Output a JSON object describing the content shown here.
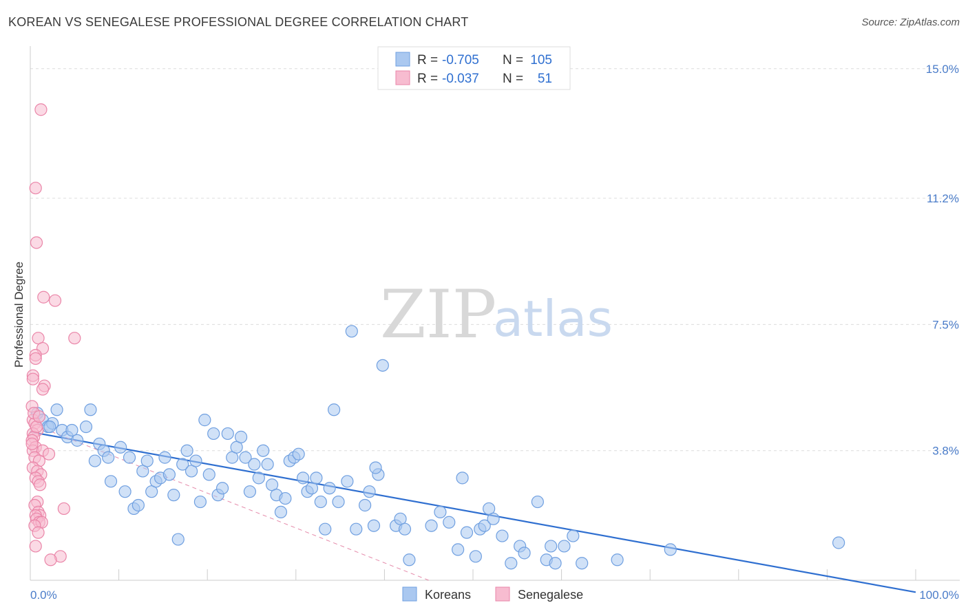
{
  "header": {
    "title": "KOREAN VS SENEGALESE PROFESSIONAL DEGREE CORRELATION CHART",
    "source": "Source: ZipAtlas.com"
  },
  "legend": {
    "rows": [
      {
        "r_label": "R =",
        "r_value": "-0.705",
        "n_label": "N =",
        "n_value": "105",
        "color": "#aac8f0",
        "stroke": "#6f9fe0"
      },
      {
        "r_label": "R =",
        "r_value": "-0.037",
        "n_label": "N =",
        "n_value": "51",
        "color": "#f7bcd0",
        "stroke": "#ea85a8"
      }
    ]
  },
  "bottom_legend": [
    {
      "label": "Koreans",
      "color": "#aac8f0",
      "stroke": "#6f9fe0"
    },
    {
      "label": "Senegalese",
      "color": "#f7bcd0",
      "stroke": "#ea85a8"
    }
  ],
  "watermark": {
    "zip": "ZIP",
    "atlas": "atlas"
  },
  "chart_data": {
    "type": "scatter",
    "title": "KOREAN VS SENEGALESE PROFESSIONAL DEGREE CORRELATION CHART",
    "xlabel": "",
    "ylabel": "Professional Degree",
    "xlim": [
      0,
      100
    ],
    "ylim": [
      0,
      15.5
    ],
    "x_tick_labels": [
      "0.0%",
      "100.0%"
    ],
    "y_ticks": [
      3.8,
      7.5,
      11.2,
      15.0
    ],
    "y_tick_labels": [
      "3.8%",
      "7.5%",
      "11.2%",
      "15.0%"
    ],
    "grid": true,
    "legend_position": "top-center",
    "series": [
      {
        "name": "Koreans",
        "color": "#aac8f0",
        "stroke": "#6f9fe0",
        "trend": {
          "x0": 0,
          "y0": 4.35,
          "x1": 100,
          "y1": -0.35,
          "color": "#2f6fd0",
          "style": "solid"
        },
        "points": [
          [
            0.8,
            4.9
          ],
          [
            1.4,
            4.7
          ],
          [
            2.0,
            4.5
          ],
          [
            2.5,
            4.6
          ],
          [
            3.0,
            5.0
          ],
          [
            2.2,
            4.5
          ],
          [
            3.6,
            4.4
          ],
          [
            4.2,
            4.2
          ],
          [
            4.7,
            4.4
          ],
          [
            5.3,
            4.1
          ],
          [
            6.3,
            4.5
          ],
          [
            6.8,
            5.0
          ],
          [
            7.3,
            3.5
          ],
          [
            7.8,
            4.0
          ],
          [
            8.3,
            3.8
          ],
          [
            8.8,
            3.6
          ],
          [
            9.1,
            2.9
          ],
          [
            10.2,
            3.9
          ],
          [
            10.7,
            2.6
          ],
          [
            11.2,
            3.6
          ],
          [
            11.7,
            2.1
          ],
          [
            12.2,
            2.2
          ],
          [
            12.7,
            3.2
          ],
          [
            13.2,
            3.5
          ],
          [
            13.7,
            2.6
          ],
          [
            14.2,
            2.9
          ],
          [
            14.7,
            3.0
          ],
          [
            15.2,
            3.6
          ],
          [
            15.7,
            3.1
          ],
          [
            16.2,
            2.5
          ],
          [
            16.7,
            1.2
          ],
          [
            17.2,
            3.4
          ],
          [
            17.7,
            3.8
          ],
          [
            18.2,
            3.2
          ],
          [
            18.7,
            3.5
          ],
          [
            19.2,
            2.3
          ],
          [
            19.7,
            4.7
          ],
          [
            20.2,
            3.1
          ],
          [
            20.7,
            4.3
          ],
          [
            21.2,
            2.5
          ],
          [
            21.7,
            2.7
          ],
          [
            22.3,
            4.3
          ],
          [
            22.8,
            3.6
          ],
          [
            23.3,
            3.9
          ],
          [
            23.8,
            4.2
          ],
          [
            24.3,
            3.6
          ],
          [
            24.8,
            2.6
          ],
          [
            25.3,
            3.4
          ],
          [
            25.8,
            3.0
          ],
          [
            26.3,
            3.8
          ],
          [
            26.8,
            3.4
          ],
          [
            27.3,
            2.8
          ],
          [
            27.8,
            2.5
          ],
          [
            28.3,
            2.0
          ],
          [
            28.8,
            2.4
          ],
          [
            29.3,
            3.5
          ],
          [
            29.8,
            3.6
          ],
          [
            30.3,
            3.7
          ],
          [
            30.8,
            3.0
          ],
          [
            31.3,
            2.6
          ],
          [
            31.8,
            2.7
          ],
          [
            32.3,
            3.0
          ],
          [
            32.8,
            2.3
          ],
          [
            33.3,
            1.5
          ],
          [
            33.8,
            2.7
          ],
          [
            34.3,
            5.0
          ],
          [
            34.8,
            2.3
          ],
          [
            35.8,
            2.9
          ],
          [
            36.3,
            7.3
          ],
          [
            36.8,
            1.5
          ],
          [
            37.8,
            2.2
          ],
          [
            38.3,
            2.6
          ],
          [
            38.8,
            1.6
          ],
          [
            39.3,
            3.1
          ],
          [
            39.8,
            6.3
          ],
          [
            41.3,
            1.6
          ],
          [
            41.8,
            1.8
          ],
          [
            42.3,
            1.5
          ],
          [
            42.8,
            0.6
          ],
          [
            45.3,
            1.6
          ],
          [
            46.3,
            2.0
          ],
          [
            47.3,
            1.7
          ],
          [
            48.3,
            0.9
          ],
          [
            48.8,
            3.0
          ],
          [
            49.3,
            1.4
          ],
          [
            50.3,
            0.7
          ],
          [
            50.8,
            1.5
          ],
          [
            51.3,
            1.6
          ],
          [
            51.8,
            2.1
          ],
          [
            52.3,
            1.8
          ],
          [
            53.3,
            1.3
          ],
          [
            54.3,
            0.5
          ],
          [
            55.3,
            1.0
          ],
          [
            57.3,
            2.3
          ],
          [
            58.3,
            0.6
          ],
          [
            58.8,
            1.0
          ],
          [
            59.3,
            0.5
          ],
          [
            60.3,
            1.0
          ],
          [
            61.3,
            1.3
          ],
          [
            62.3,
            0.5
          ],
          [
            66.3,
            0.6
          ],
          [
            72.3,
            0.9
          ],
          [
            91.3,
            1.1
          ],
          [
            55.8,
            0.8
          ],
          [
            39.0,
            3.3
          ]
        ]
      },
      {
        "name": "Senegalese",
        "color": "#f7bcd0",
        "stroke": "#ea85a8",
        "trend": {
          "x0": 0,
          "y0": 4.6,
          "x1": 45,
          "y1": 0.0,
          "color": "#e58aaa",
          "style": "dashed"
        },
        "points": [
          [
            1.2,
            13.8
          ],
          [
            0.6,
            11.5
          ],
          [
            0.7,
            9.9
          ],
          [
            1.5,
            8.3
          ],
          [
            2.8,
            8.2
          ],
          [
            0.9,
            7.1
          ],
          [
            5.0,
            7.1
          ],
          [
            1.4,
            6.8
          ],
          [
            0.6,
            6.6
          ],
          [
            0.6,
            6.5
          ],
          [
            0.3,
            6.0
          ],
          [
            0.3,
            5.9
          ],
          [
            1.6,
            5.7
          ],
          [
            1.4,
            5.6
          ],
          [
            0.2,
            5.1
          ],
          [
            0.3,
            4.7
          ],
          [
            0.5,
            4.6
          ],
          [
            0.8,
            4.4
          ],
          [
            0.3,
            4.3
          ],
          [
            0.4,
            4.2
          ],
          [
            0.2,
            4.1
          ],
          [
            0.6,
            3.9
          ],
          [
            0.3,
            3.8
          ],
          [
            1.4,
            3.8
          ],
          [
            2.1,
            3.7
          ],
          [
            0.5,
            3.6
          ],
          [
            1.0,
            3.5
          ],
          [
            0.3,
            3.3
          ],
          [
            0.8,
            3.2
          ],
          [
            1.2,
            3.1
          ],
          [
            0.6,
            3.0
          ],
          [
            0.9,
            2.9
          ],
          [
            1.1,
            2.8
          ],
          [
            0.8,
            2.3
          ],
          [
            0.5,
            2.2
          ],
          [
            3.8,
            2.1
          ],
          [
            0.9,
            2.0
          ],
          [
            1.1,
            1.9
          ],
          [
            0.6,
            1.9
          ],
          [
            0.7,
            1.8
          ],
          [
            1.0,
            1.7
          ],
          [
            1.3,
            1.7
          ],
          [
            0.5,
            1.6
          ],
          [
            0.9,
            1.4
          ],
          [
            0.6,
            1.0
          ],
          [
            3.4,
            0.7
          ],
          [
            2.3,
            0.6
          ],
          [
            0.4,
            4.9
          ],
          [
            0.7,
            4.5
          ],
          [
            1.0,
            4.8
          ],
          [
            0.2,
            4.0
          ]
        ]
      }
    ]
  }
}
